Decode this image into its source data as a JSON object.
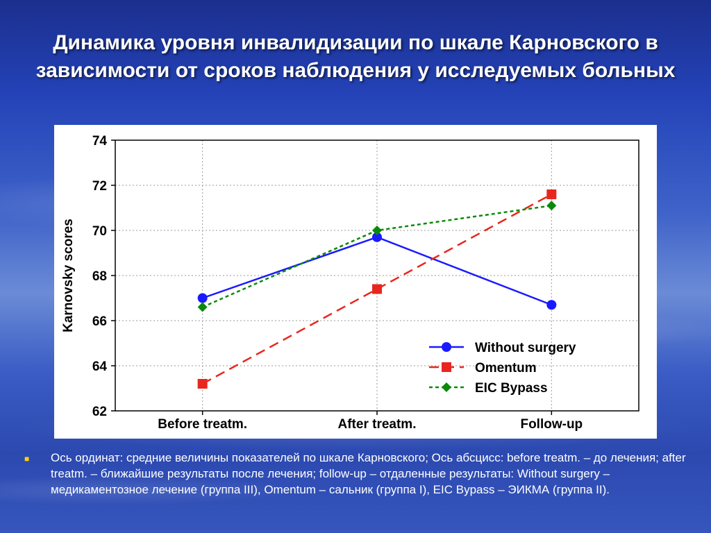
{
  "slide": {
    "title": "Динамика уровня инвалидизации по шкале Карновского в зависимости от сроков наблюдения у исследуемых больных",
    "caption": "Ось ординат: средние величины показателей по шкале Карновского; Ось абсцисс: before treatm. – до лечения; after treatm. – ближайшие результаты после лечения; follow-up – отдаленные результаты: Without surgery – медикаментозное лечение (группа III), Omentum – сальник (группа I), EIC Bypass – ЭИКМА (группа II).",
    "bullet_icon": "square-bullet-icon"
  },
  "chart_data": {
    "type": "line",
    "title": "",
    "xlabel": "",
    "ylabel": "Karnovsky scores",
    "categories": [
      "Before treatm.",
      "After treatm.",
      "Follow-up"
    ],
    "ylim": [
      62,
      74
    ],
    "yticks": [
      "62",
      "64",
      "66",
      "68",
      "70",
      "72",
      "74"
    ],
    "grid": true,
    "legend_position": "bottom-right",
    "series": [
      {
        "name": "Without surgery",
        "values": [
          67.0,
          69.7,
          66.7
        ],
        "color": "#1a1aff",
        "marker": "circle",
        "line": "solid"
      },
      {
        "name": "Omentum",
        "values": [
          63.2,
          67.4,
          71.6
        ],
        "color": "#e8261e",
        "marker": "square",
        "line": "dashed"
      },
      {
        "name": "EIC Bypass",
        "values": [
          66.6,
          70.0,
          71.1
        ],
        "color": "#0a8a0a",
        "marker": "diamond",
        "line": "dotted"
      }
    ]
  }
}
